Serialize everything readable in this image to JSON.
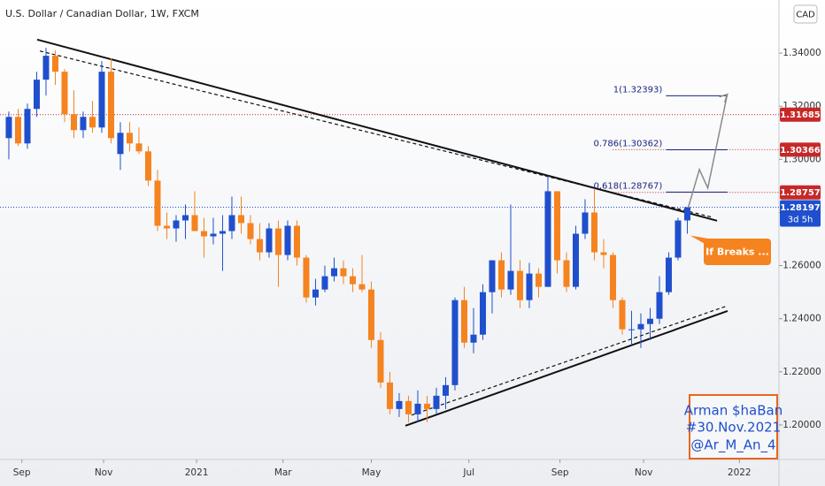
{
  "chart_data": {
    "type": "candlestick",
    "title": "U.S. Dollar / Canadian Dollar, 1W, FXCM",
    "currency": "CAD",
    "up_color": "#1f4fcc",
    "down_color": "#f5831f",
    "open": [
      1.308,
      1.316,
      1.306,
      1.319,
      1.33,
      1.339,
      1.333,
      1.317,
      1.311,
      1.316,
      1.312,
      1.333,
      1.302,
      1.31,
      1.306,
      1.303,
      1.292,
      1.275,
      1.274,
      1.277,
      1.279,
      1.273,
      1.271,
      1.272,
      1.273,
      1.279,
      1.276,
      1.27,
      1.265,
      1.274,
      1.264,
      1.275,
      1.263,
      1.248,
      1.251,
      1.256,
      1.259,
      1.256,
      1.253,
      1.251,
      1.232,
      1.216,
      1.206,
      1.209,
      1.204,
      1.208,
      1.206,
      1.211,
      1.215,
      1.247,
      1.231,
      1.234,
      1.25,
      1.262,
      1.251,
      1.258,
      1.247,
      1.257,
      1.252,
      1.288,
      1.262,
      1.252,
      1.272,
      1.28,
      1.265,
      1.264,
      1.247,
      1.236,
      1.236,
      1.238,
      1.24,
      1.25,
      1.263,
      1.277
    ],
    "high": [
      1.318,
      1.319,
      1.321,
      1.333,
      1.342,
      1.341,
      1.334,
      1.326,
      1.318,
      1.322,
      1.337,
      1.338,
      1.314,
      1.314,
      1.312,
      1.305,
      1.296,
      1.28,
      1.279,
      1.283,
      1.288,
      1.278,
      1.278,
      1.279,
      1.286,
      1.286,
      1.279,
      1.276,
      1.276,
      1.277,
      1.277,
      1.277,
      1.264,
      1.255,
      1.26,
      1.263,
      1.262,
      1.259,
      1.264,
      1.254,
      1.235,
      1.22,
      1.212,
      1.211,
      1.213,
      1.211,
      1.214,
      1.218,
      1.248,
      1.252,
      1.244,
      1.253,
      1.261,
      1.265,
      1.283,
      1.262,
      1.261,
      1.259,
      1.294,
      1.288,
      1.265,
      1.275,
      1.285,
      1.289,
      1.27,
      1.265,
      1.248,
      1.243,
      1.242,
      1.244,
      1.256,
      1.265,
      1.278,
      1.282
    ],
    "low": [
      1.3,
      1.305,
      1.304,
      1.316,
      1.324,
      1.328,
      1.314,
      1.308,
      1.308,
      1.31,
      1.31,
      1.306,
      1.296,
      1.303,
      1.302,
      1.29,
      1.273,
      1.27,
      1.269,
      1.27,
      1.273,
      1.263,
      1.268,
      1.258,
      1.27,
      1.272,
      1.268,
      1.262,
      1.263,
      1.252,
      1.262,
      1.26,
      1.246,
      1.245,
      1.25,
      1.254,
      1.253,
      1.25,
      1.25,
      1.229,
      1.214,
      1.204,
      1.203,
      1.201,
      1.201,
      1.201,
      1.204,
      1.206,
      1.213,
      1.229,
      1.227,
      1.232,
      1.242,
      1.248,
      1.249,
      1.244,
      1.244,
      1.248,
      1.252,
      1.257,
      1.25,
      1.251,
      1.27,
      1.262,
      1.259,
      1.244,
      1.234,
      1.23,
      1.229,
      1.232,
      1.238,
      1.249,
      1.262,
      1.272
    ],
    "close": [
      1.316,
      1.306,
      1.319,
      1.33,
      1.339,
      1.333,
      1.317,
      1.311,
      1.316,
      1.312,
      1.333,
      1.308,
      1.31,
      1.306,
      1.303,
      1.292,
      1.275,
      1.274,
      1.277,
      1.279,
      1.273,
      1.271,
      1.272,
      1.273,
      1.279,
      1.276,
      1.27,
      1.265,
      1.274,
      1.264,
      1.275,
      1.263,
      1.248,
      1.251,
      1.256,
      1.259,
      1.256,
      1.253,
      1.251,
      1.232,
      1.216,
      1.206,
      1.209,
      1.204,
      1.208,
      1.206,
      1.211,
      1.215,
      1.247,
      1.231,
      1.234,
      1.25,
      1.262,
      1.251,
      1.258,
      1.247,
      1.257,
      1.252,
      1.288,
      1.262,
      1.252,
      1.272,
      1.28,
      1.265,
      1.264,
      1.247,
      1.236,
      1.236,
      1.238,
      1.24,
      1.25,
      1.263,
      1.277,
      1.282
    ],
    "xlim": [
      -0.95,
      82.86
    ],
    "xticks": [
      {
        "value": 1.4,
        "label": "Sep"
      },
      {
        "value": 10.2,
        "label": "Nov"
      },
      {
        "value": 20.2,
        "label": "2021"
      },
      {
        "value": 29.5,
        "label": "Mar"
      },
      {
        "value": 39,
        "label": "May"
      },
      {
        "value": 49.5,
        "label": "Jul"
      },
      {
        "value": 59.3,
        "label": "Sep"
      },
      {
        "value": 68.3,
        "label": "Nov"
      },
      {
        "value": 78.6,
        "label": "2022"
      }
    ],
    "ylim": [
      1.187,
      1.36
    ],
    "yticks": [
      {
        "value": 1.2,
        "label": "1.20000"
      },
      {
        "value": 1.22,
        "label": "1.22000"
      },
      {
        "value": 1.24,
        "label": "1.24000"
      },
      {
        "value": 1.26,
        "label": "1.26000"
      },
      {
        "value": 1.28,
        "label": "1.28000"
      },
      {
        "value": 1.3,
        "label": "1.30000"
      },
      {
        "value": 1.32,
        "label": "1.32000"
      },
      {
        "value": 1.34,
        "label": "1.34000"
      }
    ],
    "price_tags": [
      1.31685,
      1.30366,
      1.28757
    ],
    "price_tag_color": "#c62828",
    "last_price": 1.28197,
    "last_price_color": "#1f4fcc",
    "countdown": "3d 5h",
    "trendlines": [
      {
        "points": [
          [
            3.05,
            1.3451
          ],
          [
            76.2,
            1.2769
          ]
        ],
        "style": "solid"
      },
      {
        "points": [
          [
            3.34,
            1.3408
          ],
          [
            75.7,
            1.2782
          ]
        ],
        "style": "dashed"
      },
      {
        "points": [
          [
            42.67,
            1.1997
          ],
          [
            77.33,
            1.2429
          ]
        ],
        "style": "solid"
      },
      {
        "points": [
          [
            43.33,
            1.2037
          ],
          [
            77.33,
            1.2449
          ]
        ],
        "style": "dashed"
      }
    ],
    "fib": [
      {
        "value": 1.32393,
        "label": "1(1.32393)"
      },
      {
        "value": 1.30362,
        "label": "0.786(1.30362)"
      },
      {
        "value": 1.28767,
        "label": "0.618(1.28767)"
      }
    ],
    "fib_range": [
      70.7,
      77.3
    ],
    "projection": [
      [
        73.1,
        1.2819
      ],
      [
        74.3,
        1.2962
      ],
      [
        75.2,
        1.2892
      ],
      [
        77.3,
        1.3245
      ]
    ],
    "callout": "If Breaks ...",
    "signature": [
      "Arman $haBan",
      "#30.Nov.2021",
      "@Ar_M_An_4"
    ]
  }
}
